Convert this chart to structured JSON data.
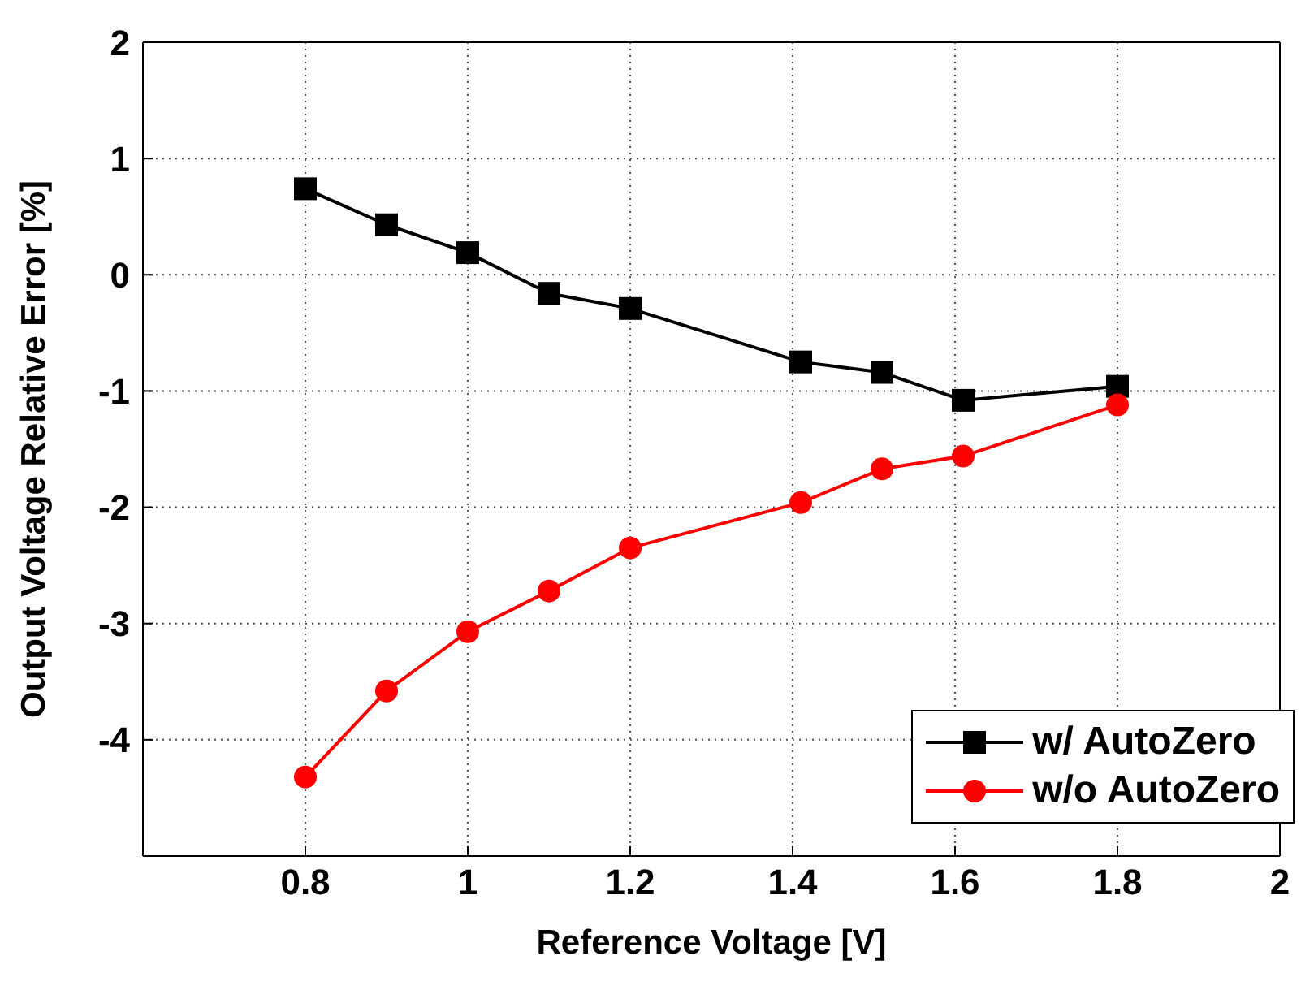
{
  "chart_data": {
    "type": "line",
    "xlabel": "Reference Voltage [V]",
    "ylabel": "Output Voltage Relative Error [%]",
    "xlim": [
      0.6,
      2
    ],
    "xticks": [
      0.8,
      1,
      1.2,
      1.4,
      1.6,
      1.8,
      2
    ],
    "ylim": [
      -5,
      2
    ],
    "yticks": [
      -4,
      -3,
      -2,
      -1,
      0,
      1,
      2
    ],
    "grid": true,
    "legend": "bottom right",
    "line_style": "solid",
    "series": [
      {
        "name": "w/ AutoZero",
        "color": "#000000",
        "marker": "square",
        "x": [
          0.8,
          0.9,
          1.0,
          1.1,
          1.2,
          1.41,
          1.51,
          1.61,
          1.8
        ],
        "values": [
          0.74,
          0.43,
          0.19,
          -0.16,
          -0.29,
          -0.75,
          -0.84,
          -1.08,
          -0.96
        ]
      },
      {
        "name": "w/o AutoZero",
        "color": "#ff0000",
        "marker": "circle",
        "x": [
          0.8,
          0.9,
          1.0,
          1.1,
          1.2,
          1.41,
          1.51,
          1.61,
          1.8
        ],
        "values": [
          -4.32,
          -3.58,
          -3.07,
          -2.72,
          -2.35,
          -1.96,
          -1.67,
          -1.56,
          -1.12
        ]
      }
    ]
  }
}
